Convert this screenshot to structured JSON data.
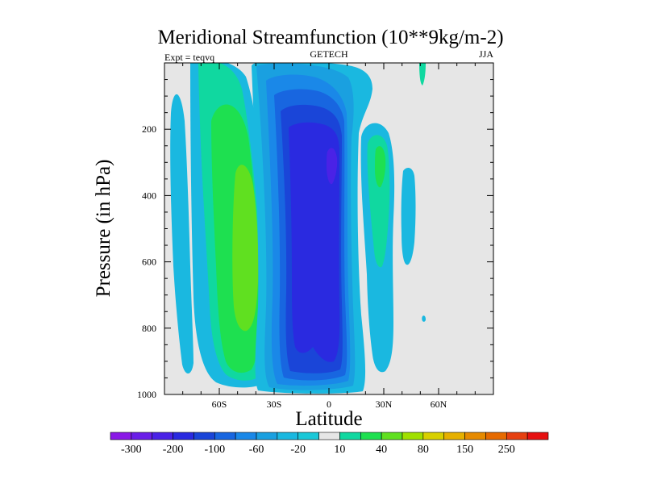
{
  "chart_data": {
    "type": "contour",
    "title": "Meridional Streamfunction (10**9kg/m-2)",
    "subtitle_left": "Expt = teqvq",
    "subtitle_center": "GETECH",
    "subtitle_right": "JJA",
    "xlabel": "Latitude",
    "ylabel": "Pressure (in hPa)",
    "xlim": [
      -90,
      90
    ],
    "ylim": [
      1000,
      0
    ],
    "x_ticks": [
      {
        "value": -60,
        "label": "60S"
      },
      {
        "value": -30,
        "label": "30S"
      },
      {
        "value": 0,
        "label": "0"
      },
      {
        "value": 30,
        "label": "30N"
      },
      {
        "value": 60,
        "label": "60N"
      }
    ],
    "y_ticks": [
      {
        "value": 200,
        "label": "200"
      },
      {
        "value": 400,
        "label": "400"
      },
      {
        "value": 600,
        "label": "600"
      },
      {
        "value": 800,
        "label": "800"
      },
      {
        "value": 1000,
        "label": "1000"
      }
    ],
    "colorbar": {
      "colors": [
        "#8a19e6",
        "#6a1ee8",
        "#4a22e6",
        "#2a2ae0",
        "#1a45d8",
        "#1866e0",
        "#1a88e8",
        "#1aa0e0",
        "#1ab8e0",
        "#1ac8d8",
        "#e6e6e6",
        "#10d8a0",
        "#1ee050",
        "#60e020",
        "#a0e000",
        "#d8d000",
        "#e6b000",
        "#e68a00",
        "#e66a00",
        "#e64010",
        "#e61010"
      ],
      "labels": [
        {
          "boundary": 1,
          "text": "-300"
        },
        {
          "boundary": 3,
          "text": "-200"
        },
        {
          "boundary": 5,
          "text": "-100"
        },
        {
          "boundary": 7,
          "text": "-60"
        },
        {
          "boundary": 9,
          "text": "-20"
        },
        {
          "boundary": 11,
          "text": "10"
        },
        {
          "boundary": 13,
          "text": "40"
        },
        {
          "boundary": 15,
          "text": "80"
        },
        {
          "boundary": 17,
          "text": "150"
        },
        {
          "boundary": 19,
          "text": "250"
        }
      ]
    }
  }
}
